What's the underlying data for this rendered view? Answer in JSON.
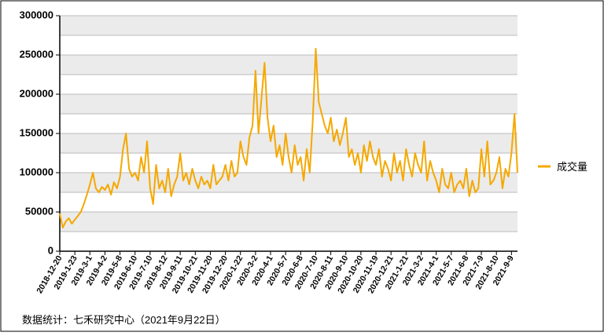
{
  "chart_data": {
    "type": "line",
    "categories": [
      "2018-12-20",
      null,
      null,
      null,
      null,
      "2019-1-23",
      null,
      null,
      null,
      null,
      "2019-3-1",
      null,
      null,
      null,
      null,
      "2019-4-2",
      null,
      null,
      null,
      null,
      "2019-5-8",
      null,
      null,
      null,
      null,
      "2019-6-10",
      null,
      null,
      null,
      null,
      "2019-7-10",
      null,
      null,
      null,
      null,
      "2019-8-12",
      null,
      null,
      null,
      null,
      "2019-9-11",
      null,
      null,
      null,
      null,
      "2019-10-21",
      null,
      null,
      null,
      null,
      "2019-11-20",
      null,
      null,
      null,
      null,
      "2019-12-20",
      null,
      null,
      null,
      null,
      "2020-1-22",
      null,
      null,
      null,
      null,
      "2020-3-2",
      null,
      null,
      null,
      null,
      "2020-4-1",
      null,
      null,
      null,
      null,
      "2020-5-7",
      null,
      null,
      null,
      null,
      "2020-6-8",
      null,
      null,
      null,
      null,
      "2020-7-10",
      null,
      null,
      null,
      null,
      "2020-8-11",
      null,
      null,
      null,
      null,
      "2020-9-10",
      null,
      null,
      null,
      null,
      "2020-10-20",
      null,
      null,
      null,
      null,
      "2020-11-19",
      null,
      null,
      null,
      null,
      "2020-12-21",
      null,
      null,
      null,
      null,
      "2021-1-21",
      null,
      null,
      null,
      null,
      "2021-3-2",
      null,
      null,
      null,
      null,
      "2021-4-1",
      null,
      null,
      null,
      null,
      "2021-5-7",
      null,
      null,
      null,
      null,
      "2021-6-8",
      null,
      null,
      null,
      null,
      "2021-7-9",
      null,
      null,
      null,
      null,
      "2021-8-10",
      null,
      null,
      null,
      null,
      "2021-9-9",
      null,
      null
    ],
    "series": [
      {
        "name": "成交量",
        "color": "#f5a800",
        "values": [
          48000,
          30000,
          38000,
          42000,
          35000,
          40000,
          45000,
          50000,
          60000,
          72000,
          85000,
          100000,
          80000,
          75000,
          82000,
          78000,
          85000,
          72000,
          88000,
          80000,
          95000,
          130000,
          150000,
          105000,
          95000,
          100000,
          90000,
          120000,
          100000,
          140000,
          80000,
          60000,
          110000,
          80000,
          90000,
          75000,
          105000,
          70000,
          85000,
          95000,
          125000,
          90000,
          100000,
          85000,
          105000,
          90000,
          80000,
          95000,
          85000,
          90000,
          80000,
          110000,
          85000,
          90000,
          95000,
          110000,
          90000,
          115000,
          95000,
          100000,
          140000,
          120000,
          110000,
          145000,
          160000,
          230000,
          150000,
          195000,
          240000,
          170000,
          140000,
          160000,
          120000,
          135000,
          110000,
          150000,
          120000,
          100000,
          135000,
          110000,
          120000,
          90000,
          130000,
          100000,
          165000,
          258000,
          190000,
          175000,
          160000,
          150000,
          170000,
          140000,
          155000,
          135000,
          150000,
          170000,
          120000,
          130000,
          110000,
          125000,
          100000,
          135000,
          115000,
          140000,
          120000,
          110000,
          130000,
          95000,
          115000,
          105000,
          90000,
          125000,
          100000,
          115000,
          90000,
          130000,
          110000,
          95000,
          125000,
          110000,
          100000,
          140000,
          90000,
          115000,
          100000,
          90000,
          75000,
          105000,
          85000,
          80000,
          100000,
          75000,
          85000,
          90000,
          80000,
          105000,
          70000,
          90000,
          75000,
          80000,
          130000,
          95000,
          140000,
          85000,
          90000,
          100000,
          120000,
          80000,
          105000,
          95000,
          125000,
          175000,
          100000
        ]
      }
    ],
    "ylim": [
      0,
      300000
    ],
    "yticks": [
      0,
      50000,
      100000,
      150000,
      200000,
      250000,
      300000
    ],
    "legend": "right"
  },
  "footer": "数据统计：七禾研究中心（2021年9月22日）"
}
